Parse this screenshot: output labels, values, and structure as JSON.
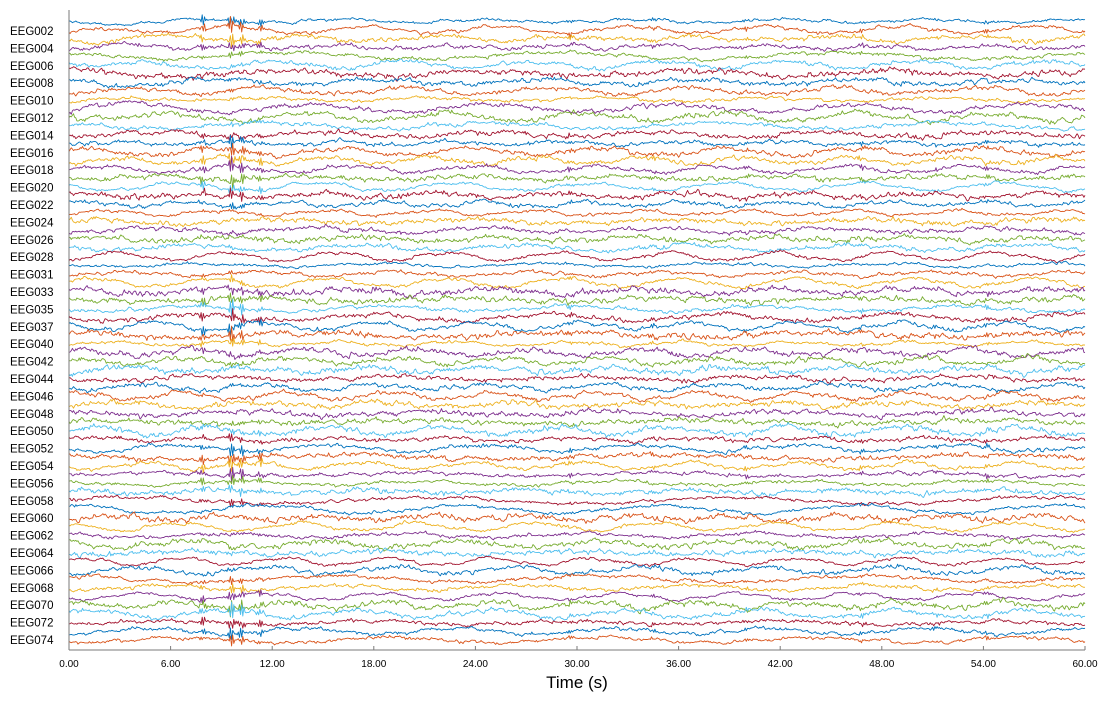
{
  "chart_data": {
    "type": "line",
    "title": "",
    "xlabel": "Time (s)",
    "ylabel": "",
    "xlim": [
      0,
      60
    ],
    "x_ticks": [
      "0.00",
      "6.00",
      "12.00",
      "18.00",
      "24.00",
      "30.00",
      "36.00",
      "42.00",
      "48.00",
      "54.00",
      "60.00"
    ],
    "x_tick_values": [
      0,
      6,
      12,
      18,
      24,
      30,
      36,
      42,
      48,
      54,
      60
    ],
    "channel_labels": [
      "EEG002",
      "EEG004",
      "EEG006",
      "EEG008",
      "EEG010",
      "EEG012",
      "EEG014",
      "EEG016",
      "EEG018",
      "EEG020",
      "EEG022",
      "EEG024",
      "EEG026",
      "EEG028",
      "EEG031",
      "EEG033",
      "EEG035",
      "EEG037",
      "EEG040",
      "EEG042",
      "EEG044",
      "EEG046",
      "EEG048",
      "EEG050",
      "EEG052",
      "EEG054",
      "EEG056",
      "EEG058",
      "EEG060",
      "EEG062",
      "EEG064",
      "EEG066",
      "EEG068",
      "EEG070",
      "EEG072",
      "EEG074"
    ],
    "traces_per_label": 2,
    "trace_count": 72,
    "trace_colors": [
      "#0072BD",
      "#D95319",
      "#EDB120",
      "#7E2F8E",
      "#77AC30",
      "#4DBEEE",
      "#A2142F"
    ],
    "grid": false,
    "legend": "none"
  }
}
